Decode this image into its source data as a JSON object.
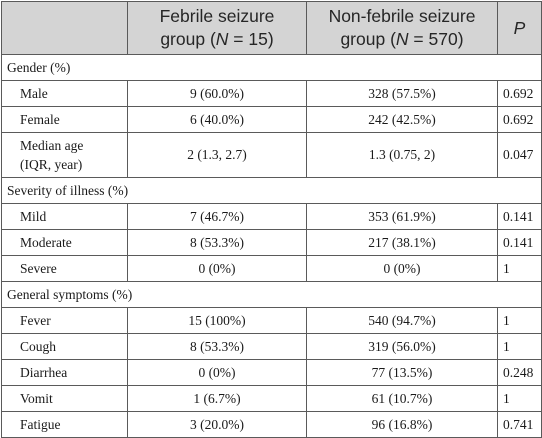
{
  "header": {
    "col2_line1": "Febrile seizure",
    "col2_line2_pre": "group (",
    "col2_n_symbol": "N",
    "col2_line2_post": " = 15)",
    "col3_line1": "Non-febrile seizure",
    "col3_line2_pre": "group (",
    "col3_n_symbol": "N",
    "col3_line2_post": " = 570)",
    "col4": "P"
  },
  "sections": [
    {
      "title": "Gender (%)",
      "rows": [
        {
          "label": "Male",
          "febrile": "9 (60.0%)",
          "nonfebrile": "328 (57.5%)",
          "p": "0.692"
        },
        {
          "label": "Female",
          "febrile": "6 (40.0%)",
          "nonfebrile": "242 (42.5%)",
          "p": "0.692"
        },
        {
          "label_line1": "Median age",
          "label_line2": "(IQR, year)",
          "febrile": "2 (1.3, 2.7)",
          "nonfebrile": "1.3 (0.75, 2)",
          "p": "0.047"
        }
      ]
    },
    {
      "title": "Severity of illness (%)",
      "rows": [
        {
          "label": "Mild",
          "febrile": "7 (46.7%)",
          "nonfebrile": "353 (61.9%)",
          "p": "0.141"
        },
        {
          "label": "Moderate",
          "febrile": "8 (53.3%)",
          "nonfebrile": "217 (38.1%)",
          "p": "0.141"
        },
        {
          "label": "Severe",
          "febrile": "0 (0%)",
          "nonfebrile": "0 (0%)",
          "p": "1"
        }
      ]
    },
    {
      "title": "General symptoms (%)",
      "rows": [
        {
          "label": "Fever",
          "febrile": "15 (100%)",
          "nonfebrile": "540 (94.7%)",
          "p": "1"
        },
        {
          "label": "Cough",
          "febrile": "8 (53.3%)",
          "nonfebrile": "319 (56.0%)",
          "p": "1"
        },
        {
          "label": "Diarrhea",
          "febrile": "0 (0%)",
          "nonfebrile": "77 (13.5%)",
          "p": "0.248"
        },
        {
          "label": "Vomit",
          "febrile": "1 (6.7%)",
          "nonfebrile": "61 (10.7%)",
          "p": "1"
        },
        {
          "label": "Fatigue",
          "febrile": "3 (20.0%)",
          "nonfebrile": "96 (16.8%)",
          "p": "0.741"
        }
      ]
    }
  ]
}
